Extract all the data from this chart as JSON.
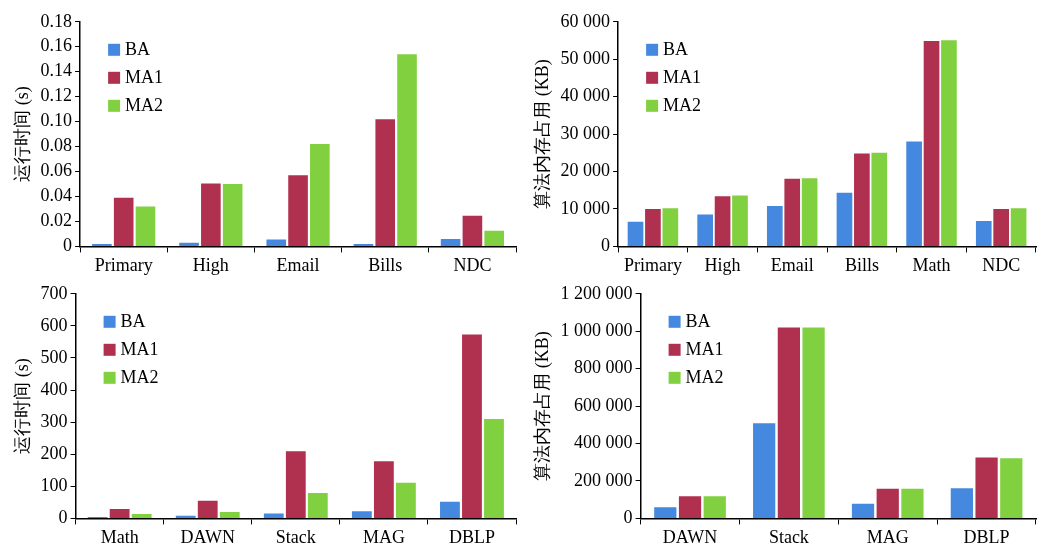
{
  "chart_data": [
    {
      "type": "bar",
      "ylabel": "运行时间 (s)",
      "categories": [
        "Primary",
        "High",
        "Email",
        "Bills",
        "NDC"
      ],
      "series": [
        {
          "name": "BA",
          "color": "#4488e0",
          "values": [
            0.002,
            0.003,
            0.0056,
            0.002,
            0.006
          ]
        },
        {
          "name": "MA1",
          "color": "#b03050",
          "values": [
            0.039,
            0.0505,
            0.057,
            0.102,
            0.0246
          ]
        },
        {
          "name": "MA2",
          "color": "#80d040",
          "values": [
            0.032,
            0.05,
            0.082,
            0.154,
            0.0126
          ]
        }
      ],
      "ylim": [
        0,
        0.18
      ],
      "yticks": [
        {
          "value": 0,
          "label": "0"
        },
        {
          "value": 0.02,
          "label": "0.02"
        },
        {
          "value": 0.04,
          "label": "0.04"
        },
        {
          "value": 0.06,
          "label": "0.06"
        },
        {
          "value": 0.08,
          "label": "0.08"
        },
        {
          "value": 0.1,
          "label": "0.10"
        },
        {
          "value": 0.12,
          "label": "0.12"
        },
        {
          "value": 0.14,
          "label": "0.14"
        },
        {
          "value": 0.16,
          "label": "0.16"
        },
        {
          "value": 0.18,
          "label": "0.18"
        }
      ],
      "grid": false,
      "legend": "top left"
    },
    {
      "type": "bar",
      "ylabel": "算法内存占用 (KB)",
      "categories": [
        "Primary",
        "High",
        "Email",
        "Bills",
        "Math",
        "NDC"
      ],
      "series": [
        {
          "name": "BA",
          "color": "#4488e0",
          "values": [
            6600,
            8500,
            10800,
            14300,
            28000,
            6800
          ]
        },
        {
          "name": "MA1",
          "color": "#b03050",
          "values": [
            10000,
            13400,
            18100,
            24800,
            54900,
            10000
          ]
        },
        {
          "name": "MA2",
          "color": "#80d040",
          "values": [
            10200,
            13600,
            18200,
            25000,
            55100,
            10200
          ]
        }
      ],
      "ylim": [
        0,
        60000
      ],
      "yticks": [
        0,
        {
          "value": 10000,
          "label": "10 000"
        },
        {
          "value": 20000,
          "label": "20 000"
        },
        {
          "value": 30000,
          "label": "30 000"
        },
        {
          "value": 40000,
          "label": "40 000"
        },
        {
          "value": 50000,
          "label": "50 000"
        },
        {
          "value": 60000,
          "label": "60 000"
        }
      ],
      "grid": false,
      "legend": "top left"
    },
    {
      "type": "bar",
      "ylabel": "运行时间 (s)",
      "categories": [
        "Math",
        "DAWN",
        "Stack",
        "MAG",
        "DBLP"
      ],
      "series": [
        {
          "name": "BA",
          "color": "#4488e0",
          "values": [
            4,
            8,
            15,
            22,
            52
          ]
        },
        {
          "name": "MA1",
          "color": "#b03050",
          "values": [
            29,
            55,
            209,
            178,
            573
          ]
        },
        {
          "name": "MA2",
          "color": "#80d040",
          "values": [
            14,
            20,
            79,
            111,
            310
          ]
        }
      ],
      "ylim": [
        0,
        700
      ],
      "yticks": [
        0,
        100,
        200,
        300,
        400,
        500,
        600,
        700
      ],
      "grid": false,
      "legend": "top left"
    },
    {
      "type": "bar",
      "ylabel": "算法内存占用 (KB)",
      "categories": [
        "DAWN",
        "Stack",
        "MAG",
        "DBLP"
      ],
      "series": [
        {
          "name": "BA",
          "color": "#4488e0",
          "values": [
            59000,
            508000,
            78000,
            161000
          ]
        },
        {
          "name": "MA1",
          "color": "#b03050",
          "values": [
            119000,
            1020000,
            159000,
            326000
          ]
        },
        {
          "name": "MA2",
          "color": "#80d040",
          "values": [
            119000,
            1020000,
            159000,
            322000
          ]
        }
      ],
      "ylim": [
        0,
        1200000
      ],
      "yticks": [
        0,
        {
          "value": 200000,
          "label": "200 000"
        },
        {
          "value": 400000,
          "label": "400 000"
        },
        {
          "value": 600000,
          "label": "600 000"
        },
        {
          "value": 800000,
          "label": "800 000"
        },
        {
          "value": 1000000,
          "label": "1 000 000"
        },
        {
          "value": 1200000,
          "label": "1 200 000"
        }
      ],
      "grid": false,
      "legend": "top left"
    }
  ]
}
